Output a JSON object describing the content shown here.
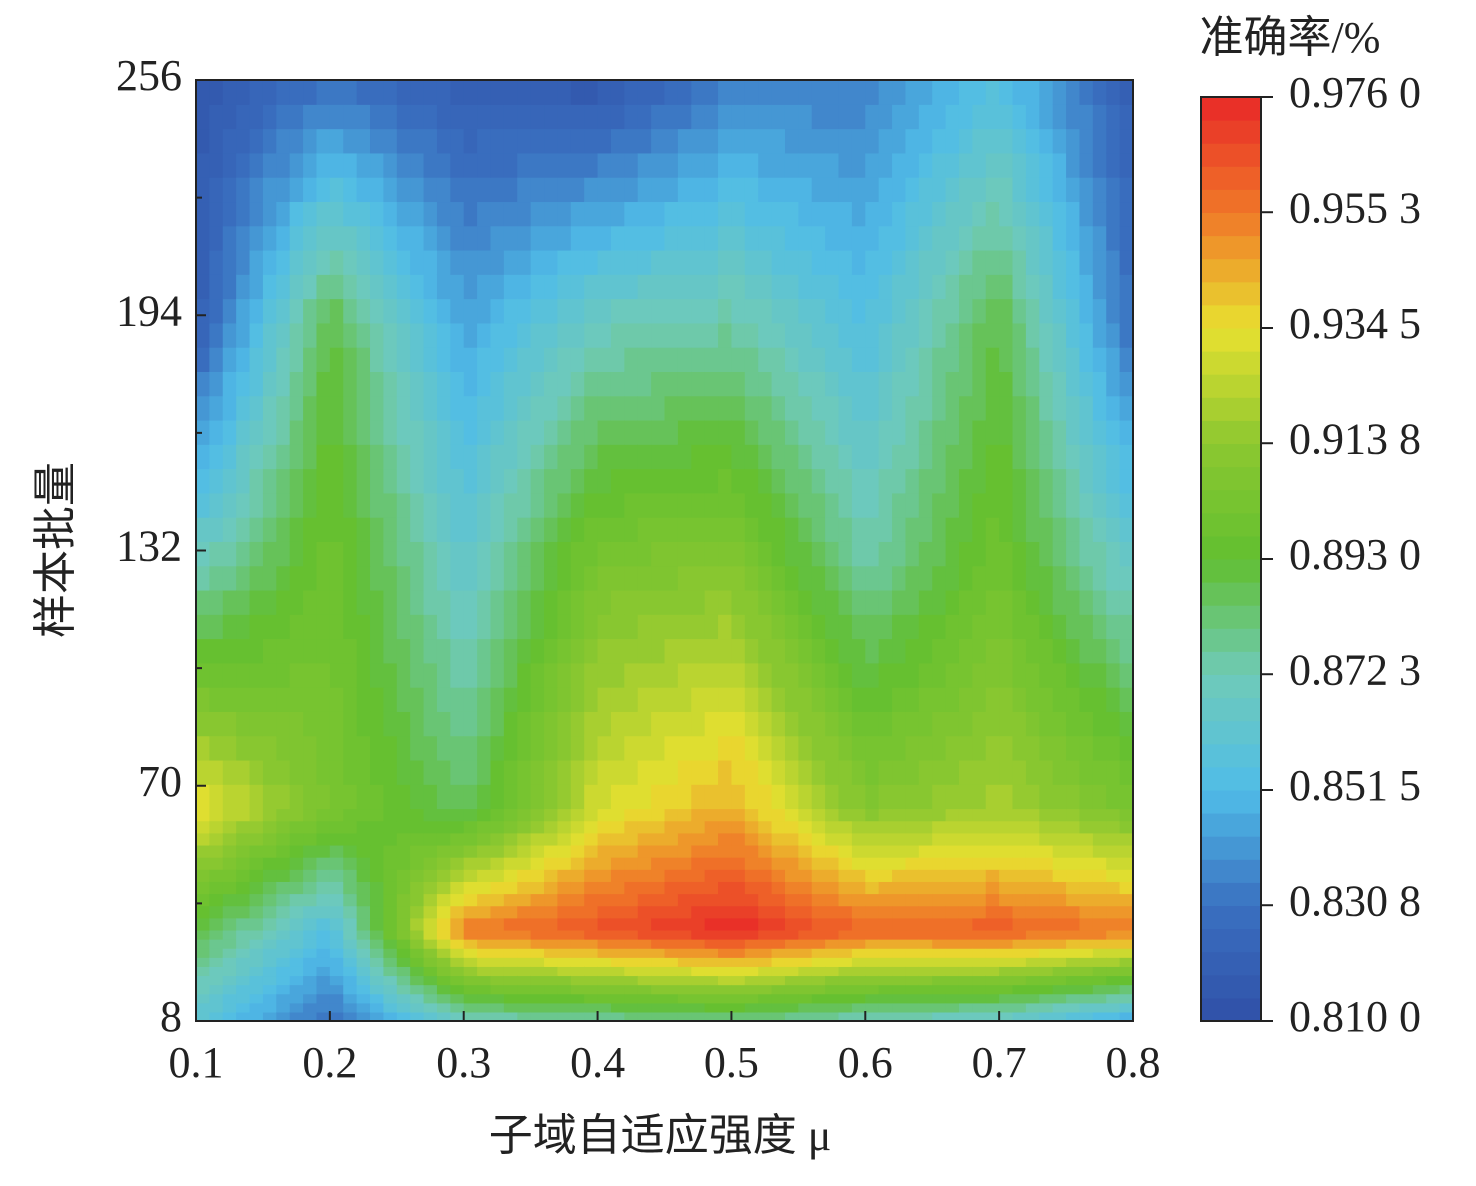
{
  "chart_data": {
    "type": "contour",
    "x_label": "子域自适应强度 μ",
    "y_label": "样本批量",
    "colorbar_title": "准确率/%",
    "x": [
      0.1,
      0.2,
      0.3,
      0.4,
      0.5,
      0.6,
      0.7,
      0.8
    ],
    "y": [
      8,
      32,
      64,
      128,
      192,
      256
    ],
    "z": [
      [
        0.86,
        0.83,
        0.87,
        0.875,
        0.88,
        0.87,
        0.865,
        0.845
      ],
      [
        0.89,
        0.855,
        0.955,
        0.965,
        0.976,
        0.96,
        0.962,
        0.955
      ],
      [
        0.935,
        0.905,
        0.885,
        0.93,
        0.945,
        0.91,
        0.92,
        0.905
      ],
      [
        0.87,
        0.9,
        0.865,
        0.905,
        0.91,
        0.875,
        0.9,
        0.865
      ],
      [
        0.82,
        0.89,
        0.845,
        0.87,
        0.875,
        0.855,
        0.89,
        0.83
      ],
      [
        0.815,
        0.83,
        0.82,
        0.815,
        0.835,
        0.835,
        0.855,
        0.82
      ]
    ],
    "xlim": [
      0.1,
      0.8
    ],
    "xticks": [
      0.1,
      0.2,
      0.3,
      0.4,
      0.5,
      0.6,
      0.7,
      0.8
    ],
    "ylim": [
      8,
      256
    ],
    "yticks": [
      8,
      70,
      132,
      194,
      256
    ],
    "yminorticks": [
      39,
      101,
      163,
      225
    ],
    "colorbar_ticks": [
      {
        "value": 0.81,
        "label": "0.810 0"
      },
      {
        "value": 0.8308,
        "label": "0.830 8"
      },
      {
        "value": 0.8515,
        "label": "0.851 5"
      },
      {
        "value": 0.8723,
        "label": "0.872 3"
      },
      {
        "value": 0.893,
        "label": "0.893 0"
      },
      {
        "value": 0.9138,
        "label": "0.913 8"
      },
      {
        "value": 0.9345,
        "label": "0.934 5"
      },
      {
        "value": 0.9553,
        "label": "0.955 3"
      },
      {
        "value": 0.976,
        "label": "0.976 0"
      }
    ],
    "colormap": [
      "#3050a8",
      "#3a70c0",
      "#50bde8",
      "#6fcab8",
      "#62bf30",
      "#8cc830",
      "#e8e030",
      "#f07828",
      "#e82828"
    ]
  }
}
